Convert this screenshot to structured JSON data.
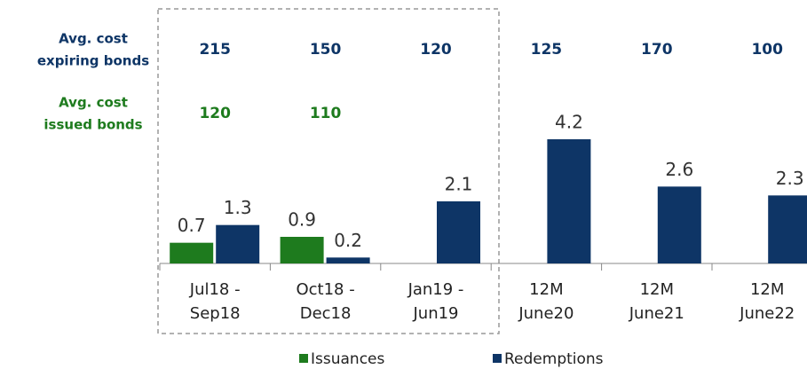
{
  "chart_data": {
    "type": "bar",
    "categories": [
      [
        "Jul18 -",
        "Sep18"
      ],
      [
        "Oct18 -",
        "Dec18"
      ],
      [
        "Jan19 -",
        "Jun19"
      ],
      [
        "12M",
        "June20"
      ],
      [
        "12M",
        "June21"
      ],
      [
        "12M",
        "June22"
      ]
    ],
    "series": [
      {
        "name": "Issuances",
        "color": "#1e7b1e",
        "values": [
          0.7,
          0.9,
          null,
          null,
          null,
          null
        ]
      },
      {
        "name": "Redemptions",
        "color": "#0e3566",
        "values": [
          1.3,
          0.2,
          2.1,
          4.2,
          2.6,
          2.3
        ]
      }
    ],
    "rows": [
      {
        "label": [
          "Avg. cost",
          "expiring bonds"
        ],
        "color": "#0e3566",
        "values": [
          215,
          150,
          120,
          125,
          170,
          100
        ]
      },
      {
        "label": [
          "Avg. cost",
          "issued bonds"
        ],
        "color": "#1e7b1e",
        "values": [
          120,
          110,
          null,
          null,
          null,
          null
        ]
      }
    ]
  }
}
